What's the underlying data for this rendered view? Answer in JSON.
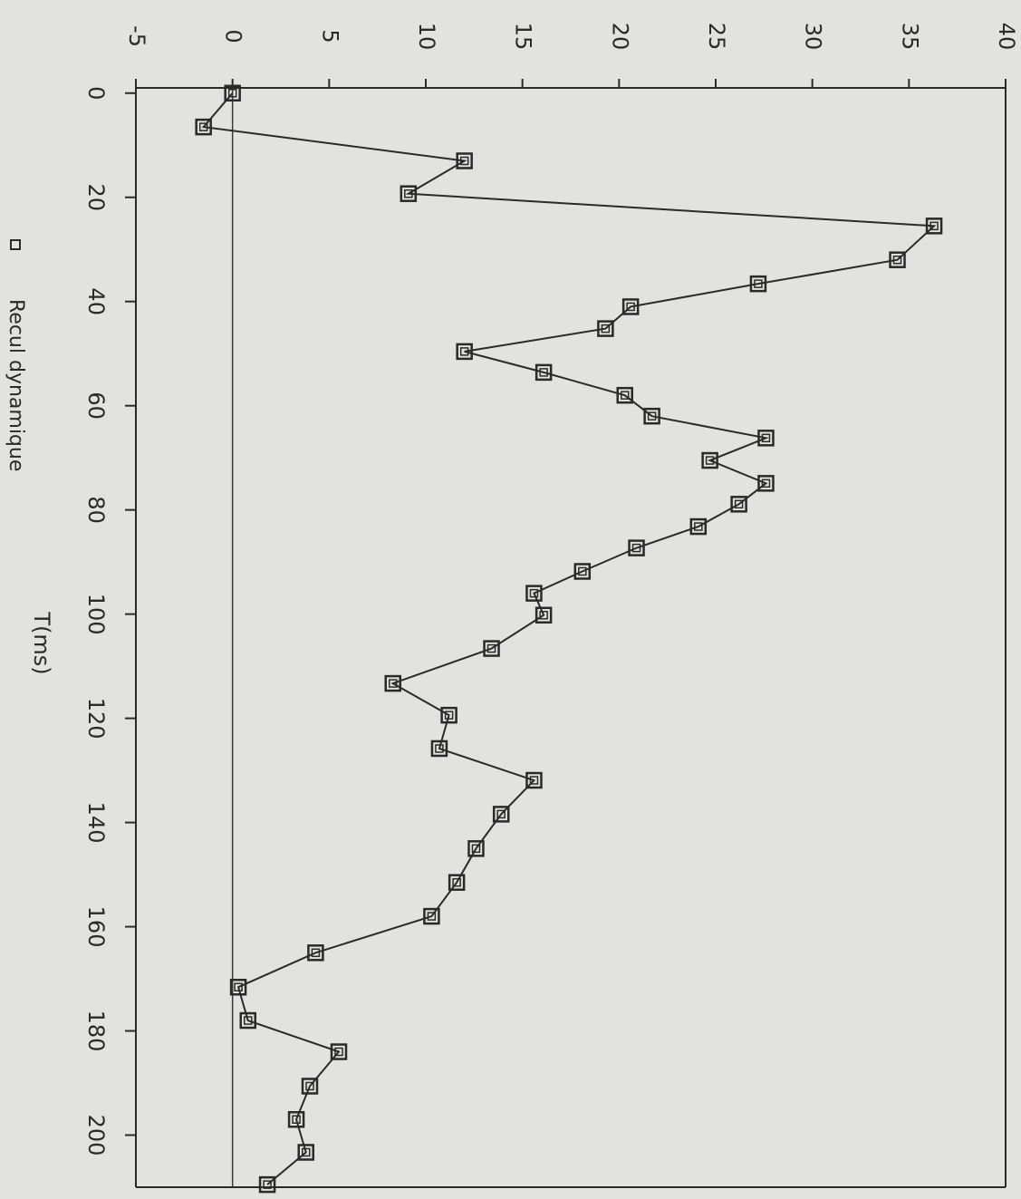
{
  "chart_data": {
    "type": "line",
    "xlabel": "T(ms)",
    "x": [
      0,
      6.5,
      13,
      19.3,
      25.5,
      32,
      36.6,
      41,
      45.2,
      49.6,
      53.6,
      58,
      62,
      66.2,
      70.5,
      74.9,
      78.9,
      83.2,
      87.3,
      91.8,
      96,
      100.2,
      106.6,
      113.3,
      119.4,
      125.8,
      131.9,
      138.4,
      145,
      151.5,
      158,
      165,
      171.6,
      178,
      184,
      190.6,
      197,
      203.3,
      209.5
    ],
    "series": [
      {
        "name": "Recul dynamique",
        "color": "#2a2a2a",
        "values": [
          0,
          -1.5,
          12,
          9.1,
          36.3,
          34.4,
          27.2,
          20.6,
          19.3,
          12,
          16.1,
          20.3,
          21.7,
          27.6,
          24.7,
          27.6,
          26.2,
          24.1,
          20.9,
          18.1,
          15.6,
          16.1,
          13.4,
          8.3,
          11.2,
          10.7,
          15.6,
          13.9,
          12.6,
          11.6,
          10.3,
          4.3,
          0.3,
          0.8,
          5.5,
          4,
          3.3,
          3.8,
          1.8
        ]
      }
    ],
    "xlim": [
      -1,
      210
    ],
    "xticks": [
      0,
      20,
      40,
      60,
      80,
      100,
      120,
      140,
      160,
      180,
      200
    ],
    "ylim": [
      -5,
      40
    ],
    "yticks": [
      -5,
      0,
      5,
      10,
      15,
      20,
      25,
      30,
      35,
      40
    ],
    "zero_line": true,
    "legend": "bottom-left"
  }
}
